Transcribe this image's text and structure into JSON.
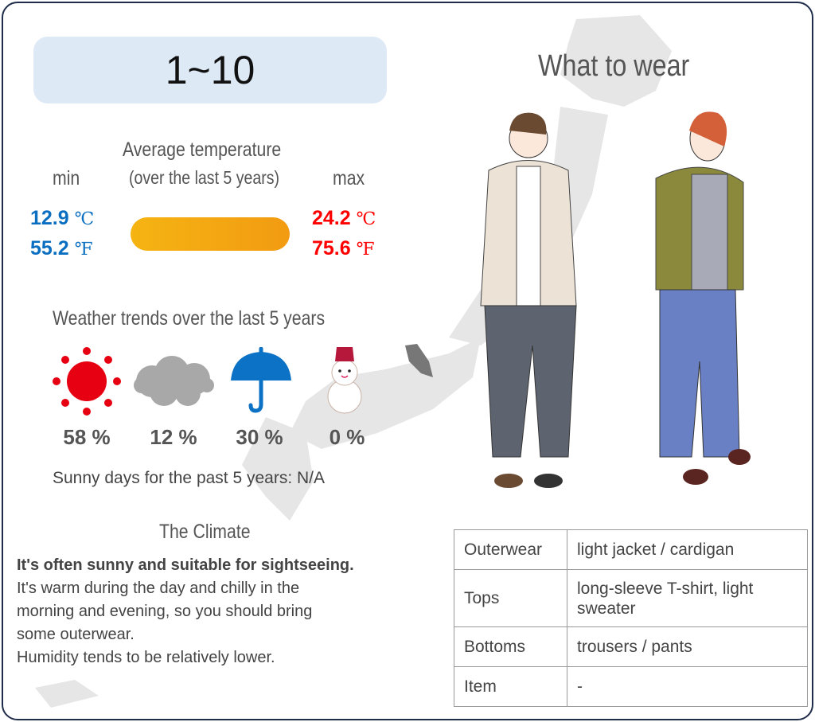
{
  "header": {
    "range": "1~10",
    "wear_title": "What to wear"
  },
  "temperature": {
    "title_line1": "Average temperature",
    "title_line2": "(over the last 5 years)",
    "min_label": "min",
    "max_label": "max",
    "min_c": "12.9",
    "min_f": "55.2",
    "max_c": "24.2",
    "max_f": "75.6",
    "unit_c": "℃",
    "unit_f": "℉",
    "colors": {
      "min": "#0b6fc1",
      "max": "#ff0000",
      "bar_start": "#f5b412",
      "bar_end": "#f29b12"
    }
  },
  "weather": {
    "title": "Weather trends over the last 5 years",
    "items": [
      {
        "icon": "sun-icon",
        "value": "58 %"
      },
      {
        "icon": "cloud-icon",
        "value": "12 %"
      },
      {
        "icon": "umbrella-icon",
        "value": "30 %"
      },
      {
        "icon": "snowman-icon",
        "value": "0 %"
      }
    ],
    "sunny_days": "Sunny days for the past 5 years: N/A"
  },
  "climate": {
    "title": "The Climate",
    "headline": "It's often sunny and suitable for sightseeing.",
    "lines": [
      "It's warm during the day and chilly in the",
      "morning and evening, so you should bring",
      "some outerwear.",
      "Humidity tends to be relatively lower."
    ]
  },
  "clothing": [
    {
      "category": "Outerwear",
      "value": "light jacket / cardigan"
    },
    {
      "category": "Tops",
      "value": "long-sleeve T-shirt, light sweater"
    },
    {
      "category": "Bottoms",
      "value": "trousers / pants"
    },
    {
      "category": "Item",
      "value": "-"
    }
  ]
}
